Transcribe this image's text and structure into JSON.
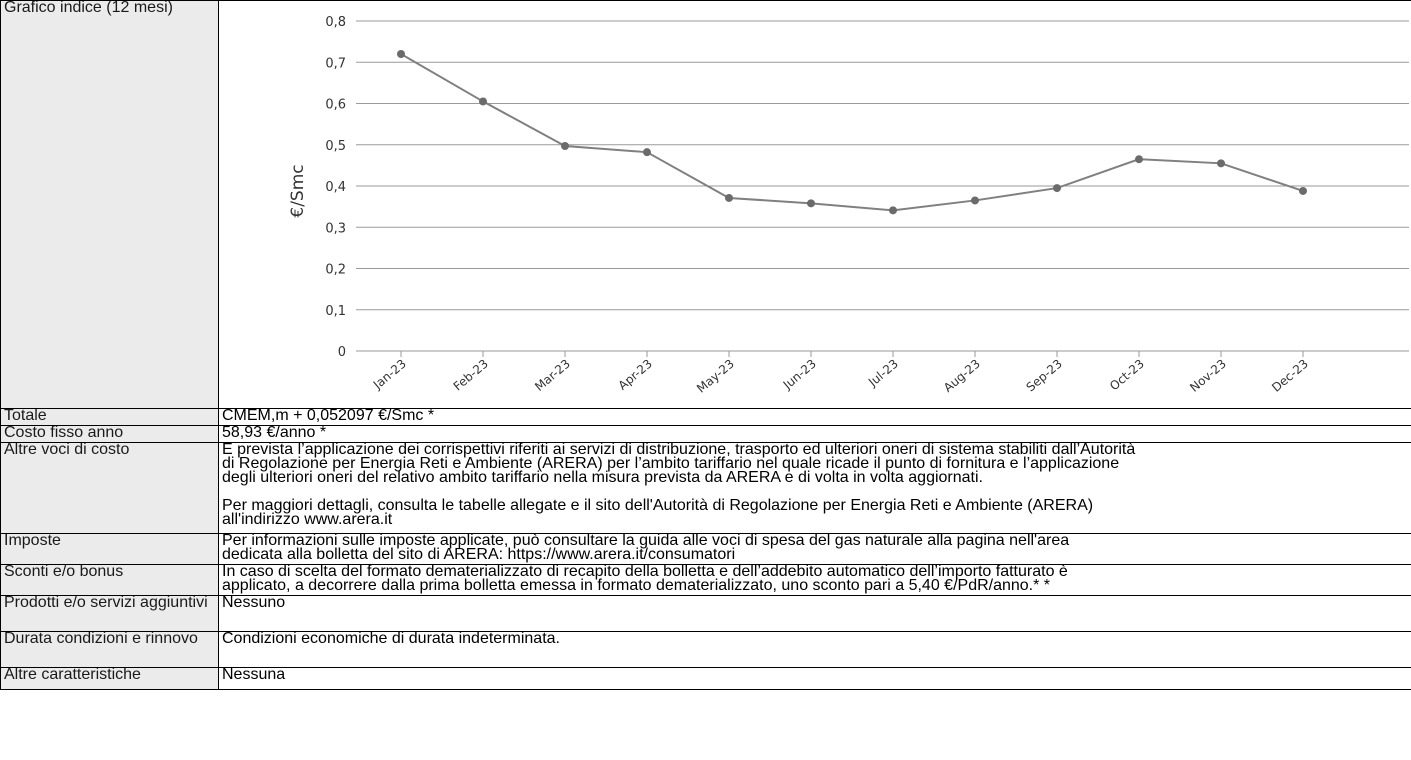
{
  "rows": {
    "grafico": {
      "label": "Grafico indice (12 mesi)"
    },
    "totale": {
      "label": "Totale",
      "value": "CMEM,m + 0,052097 €/Smc *"
    },
    "costo_fisso": {
      "label": "Costo fisso anno",
      "value": "58,93 €/anno *"
    },
    "altre_voci": {
      "label": "Altre voci di costo",
      "lines": [
        "È prevista l’applicazione dei corrispettivi riferiti ai servizi di distribuzione, trasporto ed ulteriori oneri di sistema stabiliti dall’Autorità",
        "di Regolazione per Energia Reti e Ambiente (ARERA) per l’ambito tariffario nel quale ricade il punto di fornitura e l’applicazione",
        "degli ulteriori oneri del relativo ambito tariffario nella misura prevista da ARERA e di volta in volta aggiornati.",
        "Per maggiori dettagli, consulta le tabelle allegate e il sito dell'Autorità di Regolazione per Energia Reti e Ambiente (ARERA)",
        "all'indirizzo www.arera.it"
      ]
    },
    "imposte": {
      "label": "Imposte",
      "lines": [
        "Per informazioni sulle imposte applicate, può consultare la guida alle voci di spesa del gas naturale alla pagina nell'area",
        "dedicata alla bolletta del sito di ARERA: https://www.arera.it/consumatori"
      ]
    },
    "sconti": {
      "label": "Sconti e/o bonus",
      "lines": [
        "In caso di scelta del formato dematerializzato di recapito della bolletta e dell’addebito automatico dell’importo fatturato è",
        "applicato, a decorrere dalla prima bolletta emessa in formato dematerializzato, uno sconto pari a 5,40 €/PdR/anno.* *"
      ]
    },
    "prodotti": {
      "label": "Prodotti e/o servizi aggiuntivi",
      "value": "Nessuno"
    },
    "durata": {
      "label": "Durata condizioni e rinnovo",
      "value": "Condizioni economiche di durata indeterminata."
    },
    "altre_caratteristiche": {
      "label": "Altre caratteristiche",
      "value": "Nessuna"
    }
  },
  "colors": {
    "label_bg": "#ebebeb",
    "line": "#808080",
    "grid": "#9a9a9a"
  },
  "chart_data": {
    "type": "line",
    "categories": [
      "Jan-23",
      "Feb-23",
      "Mar-23",
      "Apr-23",
      "May-23",
      "Jun-23",
      "Jul-23",
      "Aug-23",
      "Sep-23",
      "Oct-23",
      "Nov-23",
      "Dec-23"
    ],
    "series": [
      {
        "values": [
          0.72,
          0.605,
          0.497,
          0.482,
          0.371,
          0.358,
          0.341,
          0.365,
          0.395,
          0.465,
          0.455,
          0.388
        ]
      }
    ],
    "ylabel": "€/Smc",
    "ylim": [
      0,
      0.8
    ],
    "yticks": [
      "0",
      "0,1",
      "0,2",
      "0,3",
      "0,4",
      "0,5",
      "0,6",
      "0,7",
      "0,8"
    ],
    "grid": true
  }
}
